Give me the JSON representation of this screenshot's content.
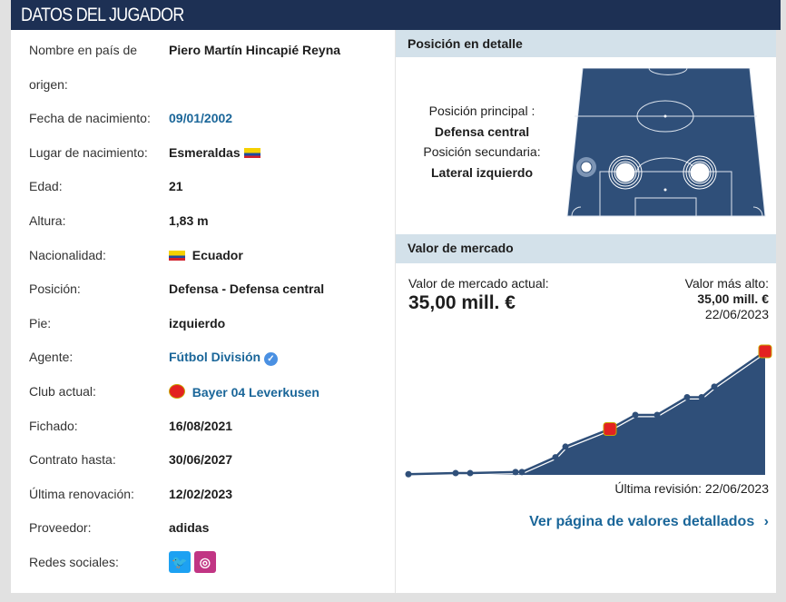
{
  "header": {
    "title": "DATOS DEL JUGADOR"
  },
  "player": [
    {
      "label": "Nombre en país de",
      "label2": "origen:",
      "value": "Piero Martín Hincapié Reyna"
    },
    {
      "label": "Fecha de nacimiento:",
      "value": "09/01/2002",
      "link": true
    },
    {
      "label": "Lugar de nacimiento:",
      "value": "Esmeraldas",
      "flag": "ecuador-flag-icon"
    },
    {
      "label": "Edad:",
      "value": "21"
    },
    {
      "label": "Altura:",
      "value": "1,83 m"
    },
    {
      "label": "Nacionalidad:",
      "value": "Ecuador",
      "flag": "ecuador-flag-icon"
    },
    {
      "label": "Posición:",
      "value": "Defensa - Defensa central"
    },
    {
      "label": "Pie:",
      "value": "izquierdo"
    },
    {
      "label": "Agente:",
      "value": "Fútbol División",
      "link": true,
      "icon": "verified-icon"
    },
    {
      "label": "Club actual:",
      "value": "Bayer 04 Leverkusen",
      "link": true,
      "icon": "leverkusen-crest-icon"
    },
    {
      "label": "Fichado:",
      "value": "16/08/2021"
    },
    {
      "label": "Contrato hasta:",
      "value": "30/06/2027"
    },
    {
      "label": "Última renovación:",
      "value": "12/02/2023"
    },
    {
      "label": "Proveedor:",
      "value": "adidas"
    },
    {
      "label": "Redes sociales:",
      "icons": [
        "twitter-icon",
        "instagram-icon"
      ]
    }
  ],
  "position": {
    "title": "Posición en detalle",
    "main_label": "Posición principal :",
    "main": "Defensa central",
    "secondary_label": "Posición secundaria:",
    "secondary": "Lateral izquierdo"
  },
  "market": {
    "title": "Valor de mercado",
    "current_label": "Valor de mercado actual:",
    "current": "35,00 mill. €",
    "highest_label": "Valor más alto:",
    "highest": "35,00 mill. €",
    "highest_date": "22/06/2023",
    "revision": "Última revisión: 22/06/2023",
    "link": "Ver página de valores detallados"
  },
  "colors": {
    "navy": "#1d3054",
    "section": "#d3e1ea",
    "link": "#1a6699",
    "area": "#2f4f79"
  },
  "chart_data": {
    "type": "area",
    "unit": "mill. €",
    "values": [
      0.2,
      0.5,
      0.5,
      0.8,
      0.8,
      5,
      8,
      13,
      17,
      17,
      22,
      22,
      25,
      35
    ],
    "ylim": [
      0,
      35
    ]
  }
}
